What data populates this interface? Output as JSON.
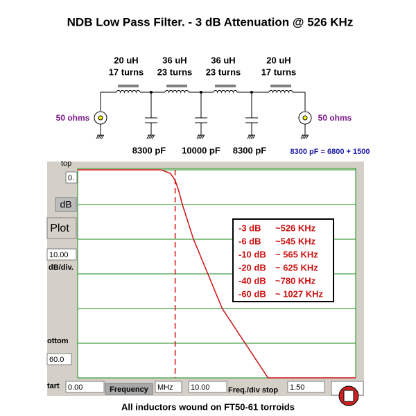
{
  "header": {
    "title": "NDB Low Pass Filter. - 3 dB Attenuation @ 526 KHz"
  },
  "schematic": {
    "inductors": [
      {
        "value": "20 uH",
        "turns": "17 turns"
      },
      {
        "value": "36 uH",
        "turns": "23 turns"
      },
      {
        "value": "36 uH",
        "turns": "23 turns"
      },
      {
        "value": "20 uH",
        "turns": "17 turns"
      }
    ],
    "capacitors": [
      "8300 pF",
      "10000 pF",
      "8300 pF"
    ],
    "source_impedance": "50 ohms",
    "load_impedance": "50 ohms",
    "note": "8300 pF = 6800 + 1500"
  },
  "controls": {
    "top_label": "top",
    "top_value": "0.",
    "db_button": "dB",
    "plot_button": "Plot",
    "div_value": "10.00",
    "div_label": "dB/div.",
    "bottom_label": "ottom",
    "bottom_value": "60.0",
    "start_label": "tart",
    "start_value": "0.00",
    "frequency_button": "Frequency",
    "unit": "MHz",
    "freq_div_value": "10.00",
    "freq_div_label": "Freq./div stop",
    "stop_value": "1.50"
  },
  "chart_data": {
    "type": "line",
    "x": [
      0,
      0.45,
      0.5,
      0.526,
      0.545,
      0.565,
      0.625,
      0.78,
      1.027,
      1.5
    ],
    "values": [
      0,
      0,
      -1,
      -3,
      -6,
      -10,
      -20,
      -40,
      -60,
      -60
    ],
    "color": "#cc1111",
    "grid_color": "#1a8a1a",
    "xlim": [
      0,
      1.5
    ],
    "ylim": [
      -60,
      0
    ],
    "yticks": [
      -60,
      -50,
      -40,
      -30,
      -20,
      -10,
      0
    ],
    "grid": true,
    "cutoff_x": 0.526,
    "annotations": [
      {
        "level": "-3 dB",
        "freq": "~526 KHz"
      },
      {
        "level": "-6 dB",
        "freq": "~545 KHz"
      },
      {
        "level": "-10 dB",
        "freq": "~ 565 KHz"
      },
      {
        "level": "-20 dB",
        "freq": "~ 625 KHz"
      },
      {
        "level": "-40 dB",
        "freq": "~780 KHz"
      },
      {
        "level": "-60 dB",
        "freq": "~ 1027 KHz"
      }
    ]
  },
  "footer": {
    "caption": "All inductors wound on FT50-61 torroids"
  }
}
